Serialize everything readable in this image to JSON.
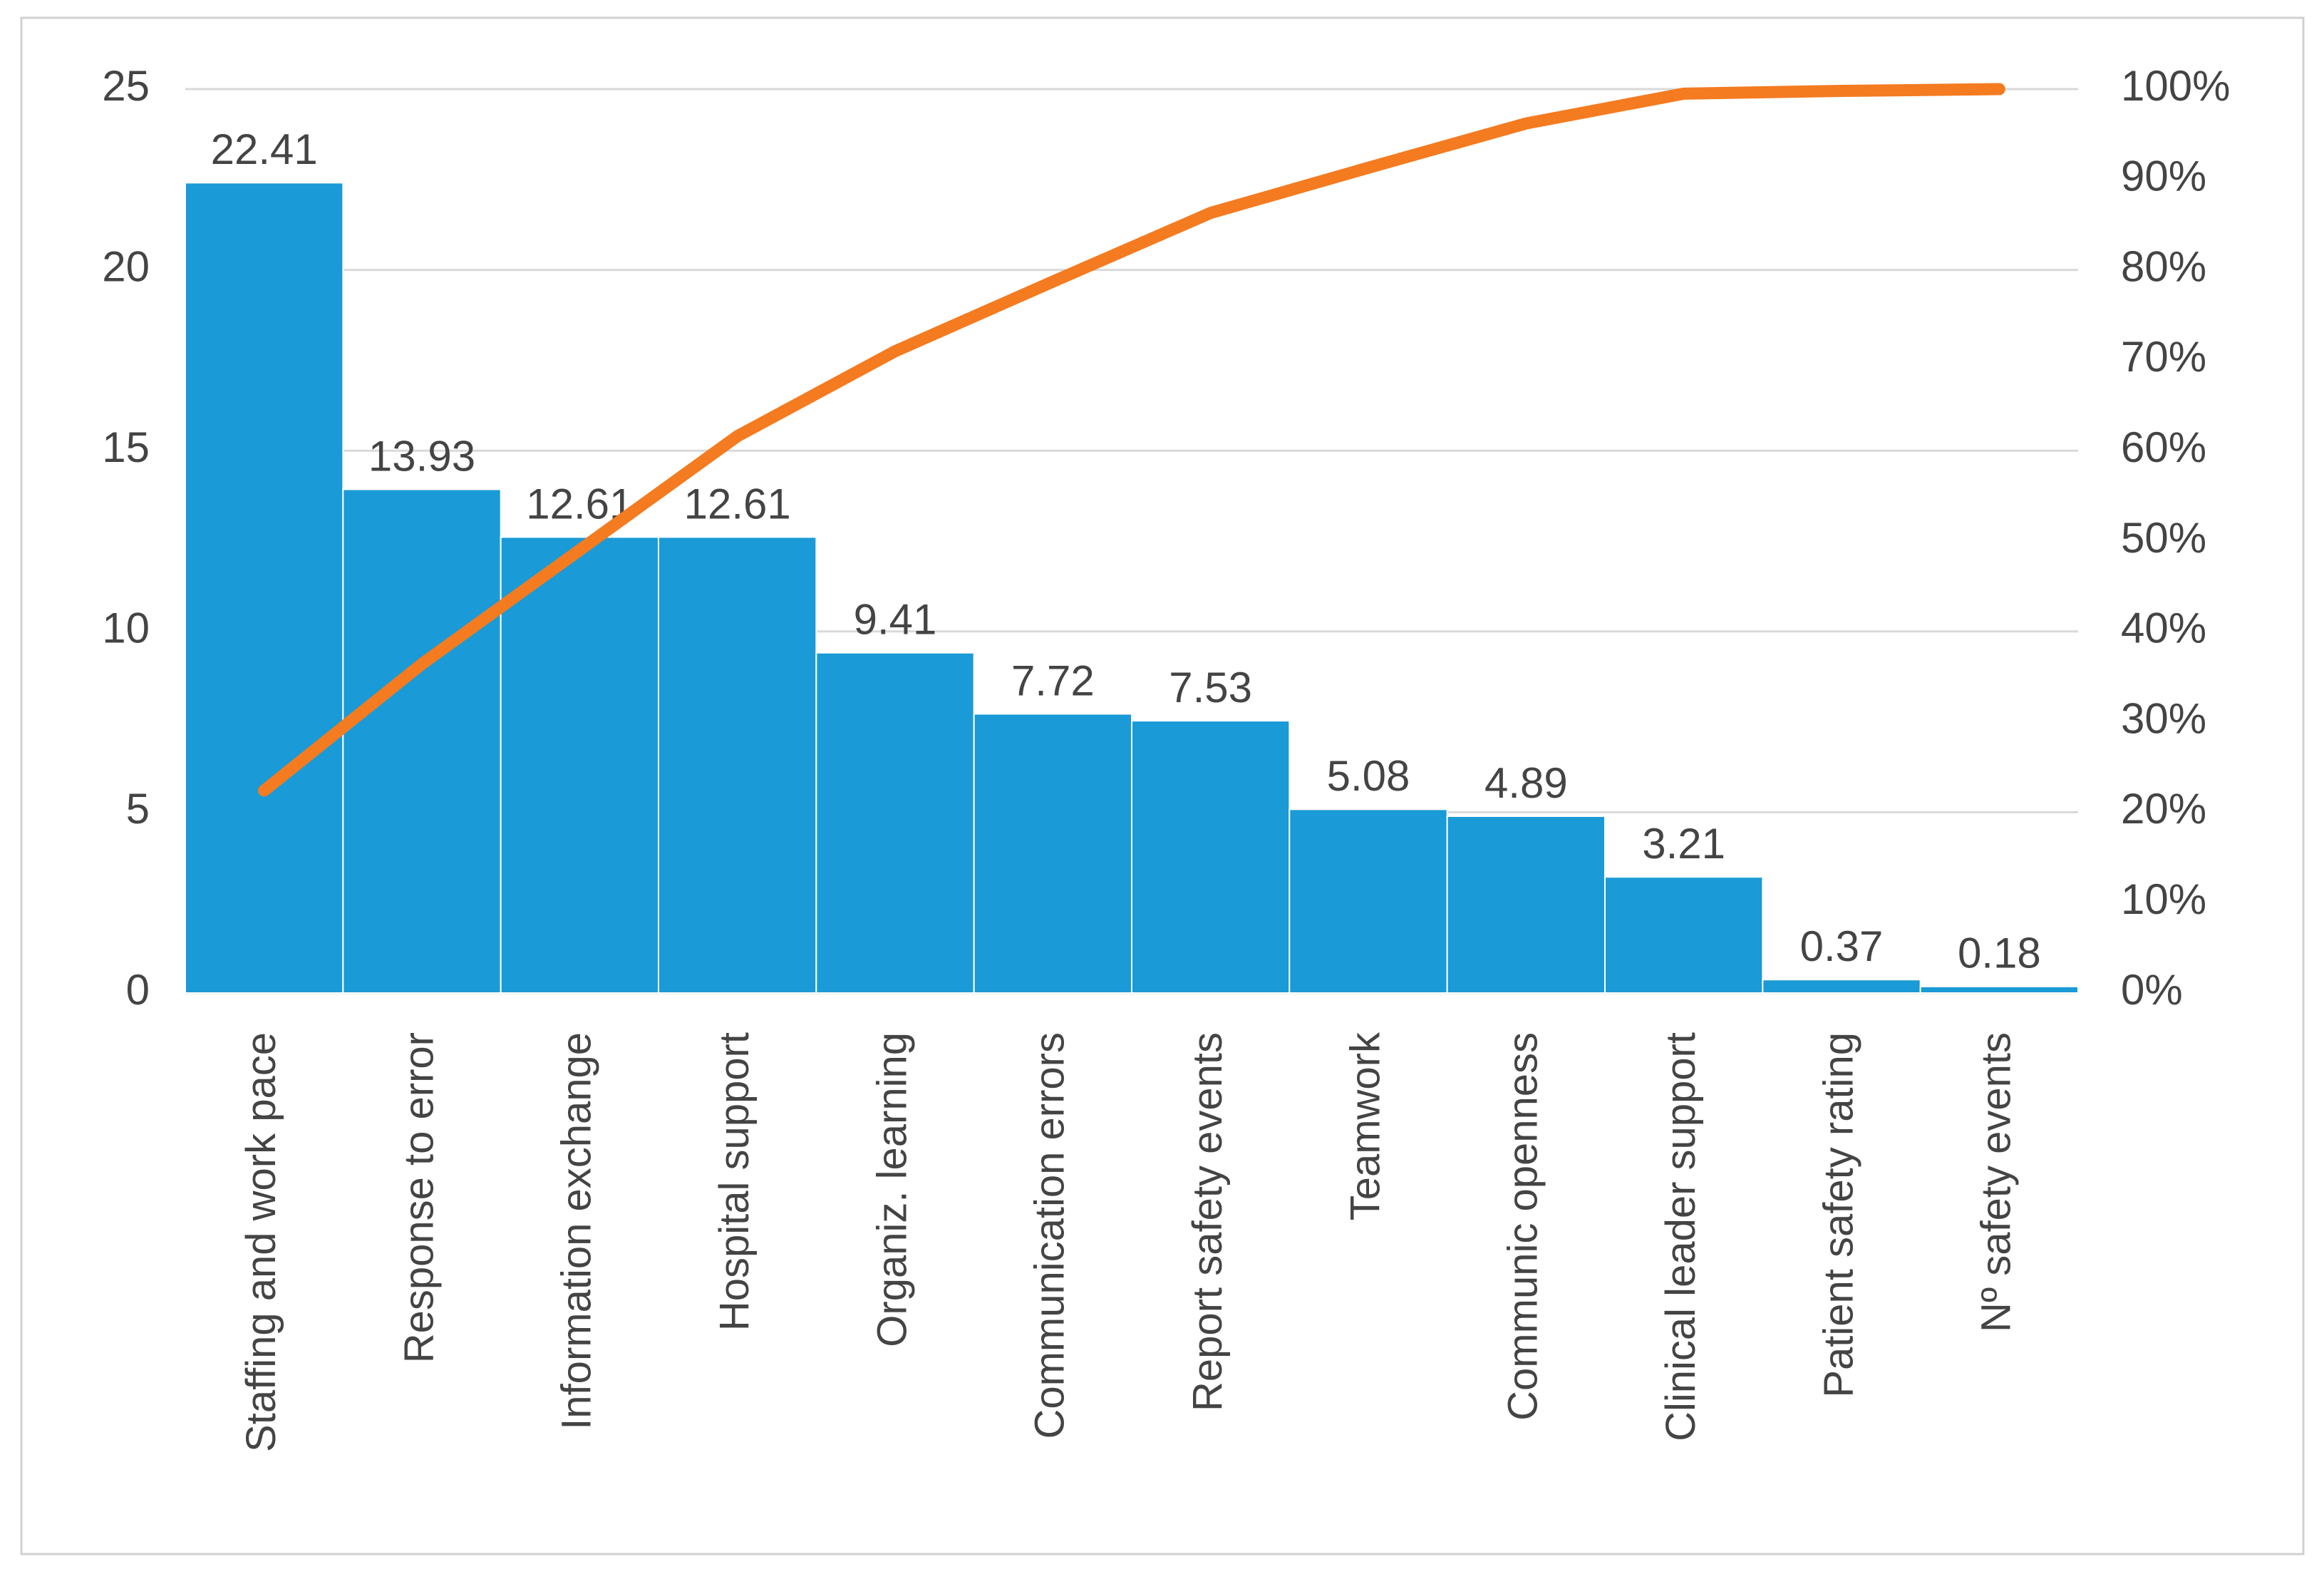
{
  "chart_data": {
    "type": "bar",
    "categories": [
      "Staffing and work pace",
      "Response to error",
      "Information exchange",
      "Hospital support",
      "Organiz. learning",
      "Communication errors",
      "Report safety events",
      "Teamwork",
      "Communic openness",
      "Clinical leader support",
      "Patient safety rating",
      "Nº safety events"
    ],
    "series": [
      {
        "type": "bar",
        "color": "#1a9ad6",
        "values": [
          22.41,
          13.93,
          12.61,
          12.61,
          9.41,
          7.72,
          7.53,
          5.08,
          4.89,
          3.21,
          0.37,
          0.18
        ]
      },
      {
        "type": "line",
        "axis": "y2",
        "color": "#f47b20",
        "values": [
          22.4,
          36.4,
          49.0,
          61.6,
          71.0,
          78.7,
          86.3,
          91.3,
          96.2,
          99.5,
          99.8,
          100
        ]
      }
    ],
    "ylim": [
      0,
      25
    ],
    "yticks": [
      0,
      5,
      10,
      15,
      20,
      25
    ],
    "y2lim": [
      0,
      100
    ],
    "y2ticks": [
      {
        "value": 0,
        "label": "0%"
      },
      {
        "value": 10,
        "label": "10%"
      },
      {
        "value": 20,
        "label": "20%"
      },
      {
        "value": 30,
        "label": "30%"
      },
      {
        "value": 40,
        "label": "40%"
      },
      {
        "value": 50,
        "label": "50%"
      },
      {
        "value": 60,
        "label": "60%"
      },
      {
        "value": 70,
        "label": "70%"
      },
      {
        "value": 80,
        "label": "80%"
      },
      {
        "value": 90,
        "label": "90%"
      },
      {
        "value": 100,
        "label": "100%"
      }
    ],
    "grid": true
  }
}
